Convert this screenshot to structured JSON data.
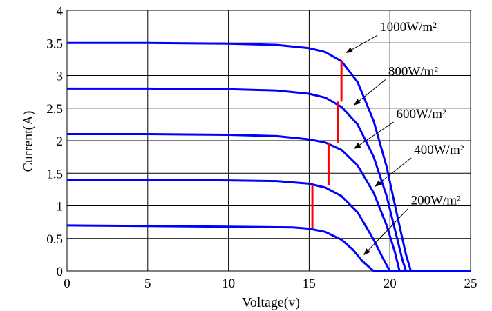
{
  "chart_data": {
    "type": "line",
    "xlabel": "Voltage(v)",
    "ylabel": "Current(A)",
    "xlim": [
      0,
      25
    ],
    "ylim": [
      0,
      4
    ],
    "xticks": [
      "0",
      "5",
      "10",
      "15",
      "20",
      "25"
    ],
    "yticks": [
      "0",
      "0.5",
      "1",
      "1.5",
      "2",
      "2.5",
      "3",
      "3.5",
      "4"
    ],
    "grid": true,
    "series": [
      {
        "name": "1000W/m²",
        "color": "#0000ff",
        "x": [
          0,
          5,
          10,
          13,
          15,
          16,
          17,
          18,
          19,
          19.8,
          20.5,
          21.0,
          21.3,
          25
        ],
        "y": [
          3.5,
          3.5,
          3.49,
          3.47,
          3.42,
          3.36,
          3.22,
          2.9,
          2.3,
          1.6,
          0.8,
          0.25,
          0,
          0
        ]
      },
      {
        "name": "800W/m²",
        "color": "#0000ff",
        "x": [
          0,
          5,
          10,
          13,
          15,
          16,
          17,
          18,
          19,
          19.8,
          20.4,
          20.8,
          21.0,
          25
        ],
        "y": [
          2.8,
          2.8,
          2.79,
          2.77,
          2.72,
          2.66,
          2.52,
          2.25,
          1.75,
          1.15,
          0.55,
          0.15,
          0,
          0
        ]
      },
      {
        "name": "600W/m²",
        "color": "#0000ff",
        "x": [
          0,
          5,
          10,
          13,
          15,
          16,
          17,
          18,
          19,
          19.8,
          20.3,
          20.6,
          25
        ],
        "y": [
          2.1,
          2.1,
          2.09,
          2.07,
          2.02,
          1.97,
          1.86,
          1.62,
          1.2,
          0.7,
          0.3,
          0,
          0
        ]
      },
      {
        "name": "400W/m²",
        "color": "#0000ff",
        "x": [
          0,
          5,
          10,
          13,
          15,
          16,
          17,
          18,
          19,
          19.6,
          20.0,
          25
        ],
        "y": [
          1.4,
          1.4,
          1.39,
          1.38,
          1.34,
          1.28,
          1.15,
          0.9,
          0.48,
          0.18,
          0,
          0
        ]
      },
      {
        "name": "200W/m²",
        "color": "#0000ff",
        "x": [
          0,
          5,
          10,
          14,
          15,
          16,
          17,
          17.7,
          18.3,
          18.8,
          19.0,
          25
        ],
        "y": [
          0.7,
          0.69,
          0.68,
          0.67,
          0.65,
          0.6,
          0.48,
          0.33,
          0.15,
          0.04,
          0,
          0
        ]
      }
    ],
    "mpp_line": {
      "color": "#ff0000",
      "x": [
        15.2,
        15.2,
        16.2,
        16.8,
        17.0
      ],
      "y": [
        0.65,
        1.32,
        1.32,
        2.6,
        3.22
      ]
    },
    "mpp_markers": [
      {
        "x": 15.2,
        "y": 1.32
      },
      {
        "x": 16.2,
        "y": 1.97
      },
      {
        "x": 16.8,
        "y": 2.6
      },
      {
        "x": 17.0,
        "y": 3.22
      }
    ],
    "annotations": [
      {
        "text": "1000W/m²",
        "label_x": 19.4,
        "label_y": 3.68,
        "point_x": 17.3,
        "point_y": 3.35
      },
      {
        "text": "800W/m²",
        "label_x": 19.9,
        "label_y": 3.0,
        "point_x": 17.8,
        "point_y": 2.55
      },
      {
        "text": "600W/m²",
        "label_x": 20.4,
        "label_y": 2.35,
        "point_x": 17.8,
        "point_y": 1.88
      },
      {
        "text": "400W/m²",
        "label_x": 21.5,
        "label_y": 1.8,
        "point_x": 19.1,
        "point_y": 1.3
      },
      {
        "text": "200W/m²",
        "label_x": 21.3,
        "label_y": 1.02,
        "point_x": 18.4,
        "point_y": 0.25
      }
    ]
  }
}
